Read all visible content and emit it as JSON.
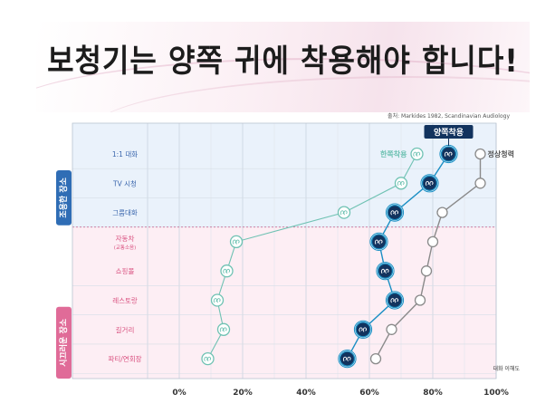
{
  "title": "보청기는 양쪽 귀에 착용해야 합니다!",
  "source": "출처: Markides 1982, Scandinavian Audiology",
  "colors": {
    "one_ear": "#6fc2b3",
    "both_ears": "#1b8fc4",
    "normal": "#8a8a8a",
    "quiet_bg": "#eaf2fb",
    "noisy_bg": "#fdeef4",
    "quiet_tab": "#2f6db5",
    "noisy_tab": "#e06b98",
    "label_blue": "#3a66ad",
    "label_pink": "#d9507f"
  },
  "groups": [
    {
      "label": "조용한 장소",
      "rows": 3
    },
    {
      "label": "시끄러운 장소",
      "rows": 5
    }
  ],
  "chart_data": {
    "type": "line",
    "categories": [
      "1:1 대화",
      "TV 시청",
      "그룹대화",
      "자동차",
      "쇼핑몰",
      "레스토랑",
      "길거리",
      "파티/연회장"
    ],
    "category_notes": [
      "",
      "",
      "",
      "(교통소음)",
      "",
      "",
      "",
      ""
    ],
    "x_ticks": [
      "0%",
      "20%",
      "40%",
      "60%",
      "80%",
      "100%"
    ],
    "xlim": [
      0,
      100
    ],
    "xlabel": "대화 이해도",
    "series": [
      {
        "name": "한쪽착용",
        "values": [
          75,
          70,
          52,
          18,
          15,
          12,
          14,
          9
        ]
      },
      {
        "name": "양쪽착용",
        "values": [
          85,
          79,
          68,
          63,
          65,
          68,
          58,
          53
        ]
      },
      {
        "name": "정상청력",
        "values": [
          95,
          95,
          83,
          80,
          78,
          76,
          67,
          62
        ]
      }
    ]
  }
}
